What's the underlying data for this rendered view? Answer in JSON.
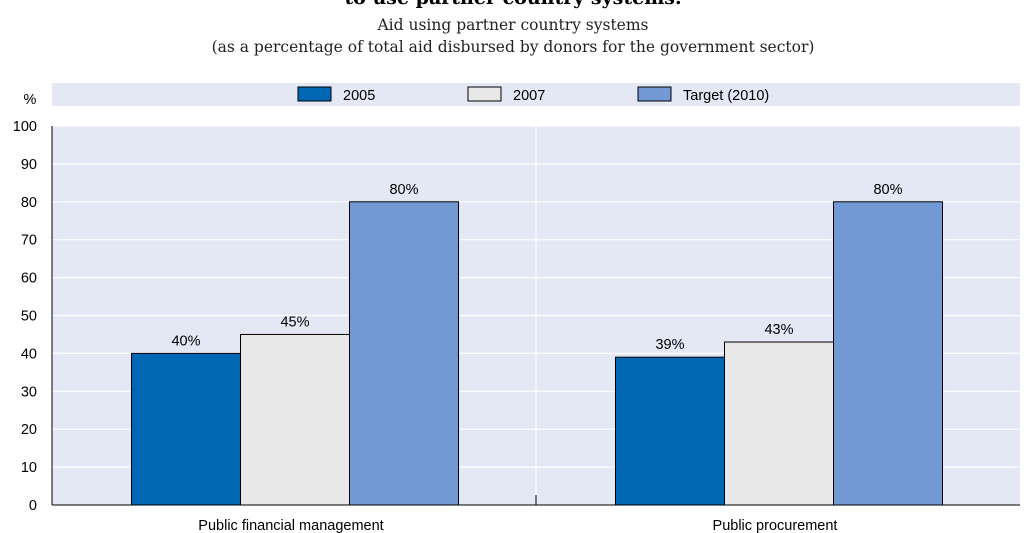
{
  "header": {
    "title": "to use partner country systems.",
    "subtitle": "Aid using partner country systems",
    "subtitle2": "(as a percentage of total aid disbursed by donors for the government sector)"
  },
  "colors": {
    "plot_bg": "#e4e8f4",
    "grid": "#ffffff",
    "series": [
      "#0067b4",
      "#e8e8e8",
      "#7299d3"
    ]
  },
  "chart_data": {
    "type": "bar",
    "title": "Aid using partner country systems",
    "ylabel": "%",
    "categories": [
      "Public financial management",
      "Public procurement"
    ],
    "series": [
      {
        "name": "2005",
        "values": [
          40,
          39
        ],
        "labels": [
          "40%",
          "39%"
        ]
      },
      {
        "name": "2007",
        "values": [
          45,
          43
        ],
        "labels": [
          "45%",
          "43%"
        ]
      },
      {
        "name": "Target (2010)",
        "values": [
          80,
          80
        ],
        "labels": [
          "80%",
          "80%"
        ]
      }
    ],
    "ylim": [
      0,
      100
    ],
    "yticks": [
      "0",
      "10",
      "20",
      "30",
      "40",
      "50",
      "60",
      "70",
      "80",
      "90",
      "100"
    ],
    "grid": true,
    "legend": "top"
  }
}
